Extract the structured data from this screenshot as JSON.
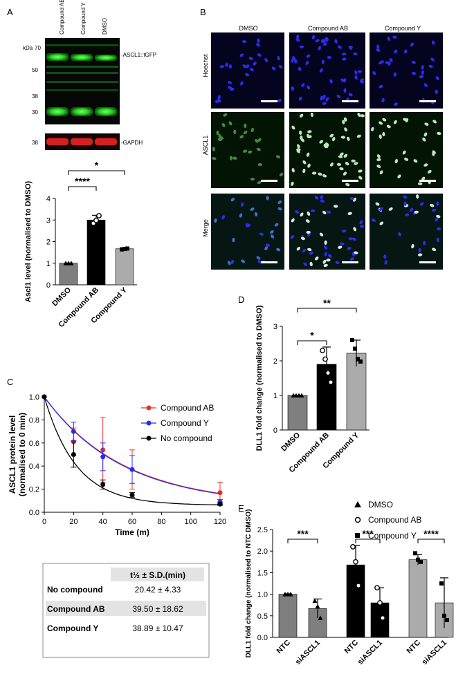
{
  "panels": {
    "A": "A",
    "B": "B",
    "C": "C",
    "D": "D",
    "E": "E"
  },
  "western": {
    "lanes": [
      "Compound AB",
      "Compound Y",
      "DMSO"
    ],
    "kda_label": "kDa",
    "markers": [
      "70",
      "50",
      "38",
      "30"
    ],
    "gapdh_marker": "38",
    "band_tgfp": "-ASCL1::tGFP",
    "band_gapdh": "-GAPDH"
  },
  "micro": {
    "columns": [
      "DMSO",
      "Compound AB",
      "Compound Y"
    ],
    "rows": [
      "Hoechst",
      "ASCL1",
      "Merge"
    ]
  },
  "table": {
    "header": "t½ ± S.D.(min)",
    "rows": [
      {
        "name": "No compound",
        "value": "20.42 ± 4.33"
      },
      {
        "name": "Compound AB",
        "value": "39.50 ± 18.62"
      },
      {
        "name": "Compound Y",
        "value": "38.89 ± 10.47"
      }
    ]
  },
  "colors": {
    "dmso": "#7f7f7f",
    "ab": "#000000",
    "y": "#ababab",
    "red": "#e8302c",
    "blue": "#2b2bea",
    "black": "#000000"
  },
  "chart_data": [
    {
      "id": "A",
      "type": "bar",
      "ylabel": "Ascl1 level (normalised to DMSO)",
      "ylim": [
        0,
        4
      ],
      "yticks": [
        "0",
        "1",
        "2",
        "3",
        "4"
      ],
      "categories": [
        "DMSO",
        "Compound AB",
        "Compound Y"
      ],
      "values": [
        1.0,
        3.0,
        1.67
      ],
      "errors": [
        0.01,
        0.22,
        0.04
      ],
      "points": [
        [
          1,
          1,
          1
        ],
        [
          2.85,
          2.98,
          3.2
        ],
        [
          1.64,
          1.66,
          1.68
        ]
      ],
      "significance": [
        {
          "from": 0,
          "to": 1,
          "label": "****"
        },
        {
          "from": 0,
          "to": 2,
          "label": "*"
        }
      ]
    },
    {
      "id": "C",
      "type": "line",
      "xlabel": "Time (m)",
      "ylabel": "ASCL1 protein level (normalised to 0 min)",
      "xlim": [
        0,
        120
      ],
      "ylim": [
        0,
        1.0
      ],
      "xticks": [
        "0",
        "20",
        "40",
        "60",
        "80",
        "100",
        "120"
      ],
      "yticks": [
        "0.0",
        "0.2",
        "0.4",
        "0.6",
        "0.8",
        "1.0"
      ],
      "series": [
        {
          "name": "Compound AB",
          "x": [
            0,
            20,
            40,
            60,
            120
          ],
          "y": [
            1.0,
            0.61,
            0.54,
            0.37,
            0.17
          ],
          "err": [
            0,
            0.12,
            0.28,
            0.17,
            0.09
          ],
          "halflife": 39.5
        },
        {
          "name": "Compound Y",
          "x": [
            0,
            20,
            40,
            60,
            120
          ],
          "y": [
            1.0,
            0.7,
            0.48,
            0.37,
            0.09
          ],
          "err": [
            0,
            0.08,
            0.12,
            0.12,
            0.02
          ],
          "halflife": 38.89
        },
        {
          "name": "No compound",
          "x": [
            0,
            20,
            40,
            60,
            120
          ],
          "y": [
            1.0,
            0.5,
            0.24,
            0.15,
            0.07
          ],
          "err": [
            0,
            0.11,
            0.04,
            0.02,
            0.01
          ],
          "halflife": 20.42
        }
      ]
    },
    {
      "id": "D",
      "type": "bar",
      "ylabel": "DLL1 fold change (normalised to DMSO)",
      "ylim": [
        0,
        3
      ],
      "yticks": [
        "0",
        "1",
        "2",
        "3"
      ],
      "categories": [
        "DMSO",
        "Compound AB",
        "Compound Y"
      ],
      "values": [
        1.0,
        1.9,
        2.22
      ],
      "errors": [
        0.01,
        0.5,
        0.38
      ],
      "points": [
        [
          1,
          1,
          1,
          1
        ],
        [
          2.3,
          2.05,
          1.65,
          1.38
        ],
        [
          2.6,
          2.35,
          2.05,
          1.98
        ]
      ],
      "significance": [
        {
          "from": 0,
          "to": 1,
          "label": "*"
        },
        {
          "from": 0,
          "to": 2,
          "label": "**"
        }
      ]
    },
    {
      "id": "E",
      "type": "bar",
      "ylabel": "DLL1 fold change (normalised to NTC DMSO)",
      "ylim": [
        0,
        2.5
      ],
      "yticks": [
        "0.0",
        "0.5",
        "1.0",
        "1.5",
        "2.0",
        "2.5"
      ],
      "categories": [
        "NTC",
        "siASCL1",
        "NTC",
        "siASCL1",
        "NTC",
        "siASCL1"
      ],
      "groups": [
        "DMSO",
        "Compound AB",
        "Compound Y"
      ],
      "values": [
        1.0,
        0.67,
        1.68,
        0.8,
        1.8,
        0.8
      ],
      "errors": [
        0.01,
        0.22,
        0.45,
        0.35,
        0.12,
        0.58
      ],
      "points": [
        [
          1,
          1,
          1
        ],
        [
          0.85,
          0.72,
          0.45
        ],
        [
          2.1,
          1.75,
          1.2
        ],
        [
          1.15,
          0.8,
          0.45
        ],
        [
          1.95,
          1.8,
          1.75
        ],
        [
          1.25,
          0.5,
          0.4
        ]
      ],
      "significance": [
        {
          "from": 0,
          "to": 1,
          "label": "***"
        },
        {
          "from": 2,
          "to": 3,
          "label": "***"
        },
        {
          "from": 4,
          "to": 5,
          "label": "****"
        }
      ],
      "legend": [
        "DMSO",
        "Compound AB",
        "Compound Y"
      ]
    }
  ]
}
